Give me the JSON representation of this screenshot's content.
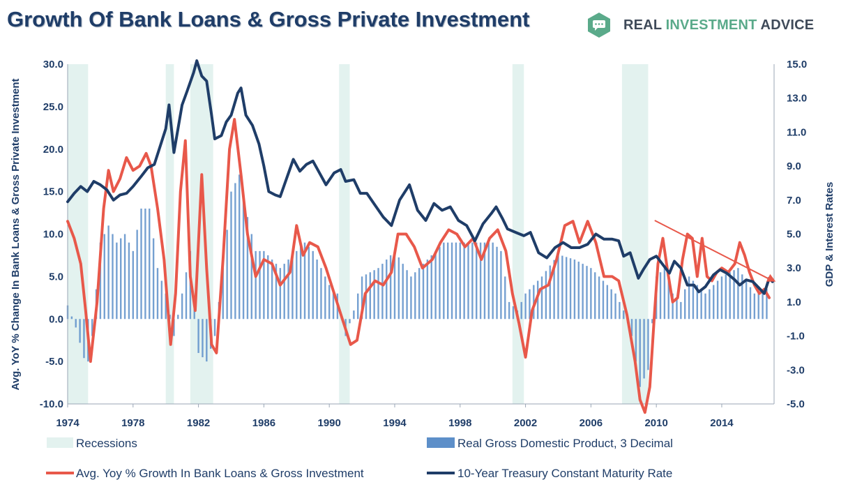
{
  "header": {
    "title": "Growth Of Bank Loans & Gross Private Investment",
    "brand_part1": "REAL ",
    "brand_part2": "INVESTMENT",
    "brand_part3": " ADVICE"
  },
  "colors": {
    "recession": "#e3f2ef",
    "gdp_bar": "#5d8fc9",
    "loans_line": "#e8584a",
    "treasury_line": "#1f3d68",
    "trend_arrow": "#e8584a",
    "axis_text": "#1f3d68",
    "brand_green": "#5aaa8a"
  },
  "chart_data": {
    "type": "bar+line",
    "title": "Growth Of Bank Loans & Gross Private Investment",
    "ylabel_left": "Avg. YoY % Change In Bank Loans & Gross Private Investment",
    "ylabel_right": "GDP & Interest Rates",
    "y_left_lim": [
      -10,
      30
    ],
    "y_right_lim": [
      -5,
      15
    ],
    "x_lim": [
      1974,
      2017.2
    ],
    "x_ticks": [
      "1974",
      "1978",
      "1982",
      "1986",
      "1990",
      "1994",
      "1998",
      "2002",
      "2006",
      "2010",
      "2014"
    ],
    "y_left_ticks": [
      "30.0",
      "25.0",
      "20.0",
      "15.0",
      "10.0",
      "5.0",
      "0.0",
      "-5.0",
      "-10.0"
    ],
    "y_right_ticks": [
      "15.0",
      "13.0",
      "11.0",
      "9.0",
      "7.0",
      "5.0",
      "3.0",
      "1.0",
      "-1.0",
      "-3.0",
      "-5.0"
    ],
    "recessions": [
      [
        1974.0,
        1975.25
      ],
      [
        1980.0,
        1980.5
      ],
      [
        1981.5,
        1982.9
      ],
      [
        1990.6,
        1991.25
      ],
      [
        2001.2,
        2001.9
      ],
      [
        2007.9,
        2009.5
      ]
    ],
    "series": [
      {
        "name": "Recessions",
        "kind": "band"
      },
      {
        "name": "Real Gross Domestic Product, 3 Decimal",
        "axis": "right",
        "kind": "bar",
        "points": [
          [
            1974.0,
            0.8
          ],
          [
            1974.5,
            -0.5
          ],
          [
            1975.0,
            -2.3
          ],
          [
            1975.25,
            -2.5
          ],
          [
            1975.5,
            -1.0
          ],
          [
            1976.0,
            4.5
          ],
          [
            1976.5,
            5.5
          ],
          [
            1977.0,
            4.5
          ],
          [
            1977.5,
            5.0
          ],
          [
            1978.0,
            4.0
          ],
          [
            1978.5,
            6.5
          ],
          [
            1979.0,
            6.5
          ],
          [
            1979.5,
            3.0
          ],
          [
            1980.0,
            1.5
          ],
          [
            1980.5,
            -1.0
          ],
          [
            1981.0,
            1.5
          ],
          [
            1981.5,
            4.0
          ],
          [
            1982.0,
            -2.0
          ],
          [
            1982.5,
            -2.5
          ],
          [
            1983.0,
            -1.0
          ],
          [
            1983.5,
            3.0
          ],
          [
            1984.0,
            7.5
          ],
          [
            1984.5,
            8.5
          ],
          [
            1985.0,
            6.0
          ],
          [
            1985.5,
            4.0
          ],
          [
            1986.0,
            4.0
          ],
          [
            1987.0,
            3.0
          ],
          [
            1988.0,
            4.0
          ],
          [
            1988.5,
            4.5
          ],
          [
            1989.0,
            4.0
          ],
          [
            1989.5,
            3.0
          ],
          [
            1990.0,
            2.0
          ],
          [
            1990.5,
            1.5
          ],
          [
            1991.0,
            -1.0
          ],
          [
            1991.5,
            0.5
          ],
          [
            1992.0,
            2.5
          ],
          [
            1993.0,
            3.0
          ],
          [
            1994.0,
            4.0
          ],
          [
            1995.0,
            2.5
          ],
          [
            1996.0,
            3.5
          ],
          [
            1997.0,
            4.5
          ],
          [
            1998.0,
            4.5
          ],
          [
            1999.0,
            4.5
          ],
          [
            2000.0,
            4.5
          ],
          [
            2000.5,
            4.0
          ],
          [
            2001.0,
            1.0
          ],
          [
            2001.5,
            0.5
          ],
          [
            2002.0,
            1.5
          ],
          [
            2002.5,
            2.0
          ],
          [
            2003.0,
            2.5
          ],
          [
            2004.0,
            3.8
          ],
          [
            2005.0,
            3.5
          ],
          [
            2006.0,
            3.0
          ],
          [
            2007.0,
            2.0
          ],
          [
            2007.5,
            1.5
          ],
          [
            2008.0,
            0.5
          ],
          [
            2008.5,
            -1.0
          ],
          [
            2009.0,
            -4.0
          ],
          [
            2009.5,
            -3.0
          ],
          [
            2010.0,
            2.5
          ],
          [
            2010.5,
            3.0
          ],
          [
            2011.0,
            1.5
          ],
          [
            2011.5,
            1.0
          ],
          [
            2012.0,
            2.5
          ],
          [
            2013.0,
            1.5
          ],
          [
            2014.0,
            2.5
          ],
          [
            2015.0,
            3.0
          ],
          [
            2016.0,
            1.5
          ],
          [
            2016.8,
            1.8
          ]
        ]
      },
      {
        "name": "Avg. Yoy % Growth In Bank Loans & Gross Investment",
        "axis": "left",
        "kind": "line",
        "points": [
          [
            1974.0,
            11.5
          ],
          [
            1974.4,
            9.5
          ],
          [
            1974.8,
            6.5
          ],
          [
            1975.1,
            1.0
          ],
          [
            1975.4,
            -5.0
          ],
          [
            1975.8,
            2.0
          ],
          [
            1976.2,
            13.0
          ],
          [
            1976.5,
            17.5
          ],
          [
            1976.8,
            15.0
          ],
          [
            1977.2,
            16.5
          ],
          [
            1977.6,
            19.0
          ],
          [
            1978.0,
            17.5
          ],
          [
            1978.4,
            18.0
          ],
          [
            1978.8,
            19.5
          ],
          [
            1979.1,
            18.0
          ],
          [
            1979.5,
            13.0
          ],
          [
            1979.9,
            7.0
          ],
          [
            1980.3,
            -3.0
          ],
          [
            1980.6,
            3.0
          ],
          [
            1980.9,
            15.0
          ],
          [
            1981.2,
            21.0
          ],
          [
            1981.5,
            5.0
          ],
          [
            1981.8,
            1.0
          ],
          [
            1982.2,
            17.0
          ],
          [
            1982.5,
            6.0
          ],
          [
            1982.8,
            -3.0
          ],
          [
            1983.1,
            -4.0
          ],
          [
            1983.5,
            7.0
          ],
          [
            1983.9,
            20.0
          ],
          [
            1984.2,
            23.5
          ],
          [
            1984.6,
            17.0
          ],
          [
            1985.0,
            10.0
          ],
          [
            1985.5,
            5.0
          ],
          [
            1986.0,
            7.0
          ],
          [
            1986.5,
            6.5
          ],
          [
            1987.0,
            4.0
          ],
          [
            1987.6,
            5.5
          ],
          [
            1988.0,
            11.0
          ],
          [
            1988.4,
            7.5
          ],
          [
            1988.8,
            9.0
          ],
          [
            1989.3,
            8.5
          ],
          [
            1989.8,
            6.0
          ],
          [
            1990.3,
            3.0
          ],
          [
            1990.8,
            0.0
          ],
          [
            1991.3,
            -3.0
          ],
          [
            1991.7,
            -2.5
          ],
          [
            1992.2,
            3.0
          ],
          [
            1992.8,
            4.5
          ],
          [
            1993.3,
            4.0
          ],
          [
            1993.8,
            5.5
          ],
          [
            1994.2,
            10.0
          ],
          [
            1994.7,
            10.0
          ],
          [
            1995.2,
            8.5
          ],
          [
            1995.7,
            6.0
          ],
          [
            1996.3,
            7.0
          ],
          [
            1996.8,
            9.0
          ],
          [
            1997.3,
            10.5
          ],
          [
            1997.8,
            10.0
          ],
          [
            1998.3,
            8.5
          ],
          [
            1998.8,
            9.5
          ],
          [
            1999.3,
            7.0
          ],
          [
            1999.8,
            9.5
          ],
          [
            2000.3,
            10.5
          ],
          [
            2000.8,
            8.0
          ],
          [
            2001.2,
            3.0
          ],
          [
            2001.6,
            -0.5
          ],
          [
            2002.0,
            -4.5
          ],
          [
            2002.4,
            1.0
          ],
          [
            2002.9,
            3.5
          ],
          [
            2003.4,
            4.0
          ],
          [
            2003.9,
            7.0
          ],
          [
            2004.4,
            11.0
          ],
          [
            2004.9,
            11.5
          ],
          [
            2005.3,
            9.0
          ],
          [
            2005.8,
            11.5
          ],
          [
            2006.3,
            9.0
          ],
          [
            2006.8,
            5.0
          ],
          [
            2007.3,
            5.0
          ],
          [
            2007.7,
            4.5
          ],
          [
            2008.2,
            0.5
          ],
          [
            2008.7,
            -5.0
          ],
          [
            2009.0,
            -9.5
          ],
          [
            2009.3,
            -11.0
          ],
          [
            2009.6,
            -8.0
          ],
          [
            2009.9,
            1.0
          ],
          [
            2010.1,
            6.5
          ],
          [
            2010.4,
            9.5
          ],
          [
            2010.7,
            5.5
          ],
          [
            2011.0,
            2.0
          ],
          [
            2011.3,
            2.5
          ],
          [
            2011.6,
            7.0
          ],
          [
            2011.9,
            10.0
          ],
          [
            2012.2,
            9.5
          ],
          [
            2012.5,
            5.0
          ],
          [
            2012.8,
            9.5
          ],
          [
            2013.1,
            5.0
          ],
          [
            2013.4,
            4.5
          ],
          [
            2013.7,
            5.5
          ],
          [
            2014.0,
            6.0
          ],
          [
            2014.4,
            5.5
          ],
          [
            2014.8,
            6.5
          ],
          [
            2015.1,
            9.0
          ],
          [
            2015.4,
            7.5
          ],
          [
            2015.7,
            5.5
          ],
          [
            2016.0,
            4.0
          ],
          [
            2016.3,
            3.0
          ],
          [
            2016.6,
            3.5
          ],
          [
            2016.9,
            2.5
          ]
        ]
      },
      {
        "name": "10-Year Treasury Constant Maturity Rate",
        "axis": "right",
        "kind": "line",
        "points": [
          [
            1974.0,
            6.9
          ],
          [
            1974.4,
            7.4
          ],
          [
            1974.8,
            7.8
          ],
          [
            1975.2,
            7.5
          ],
          [
            1975.6,
            8.1
          ],
          [
            1976.0,
            7.9
          ],
          [
            1976.4,
            7.6
          ],
          [
            1976.8,
            7.0
          ],
          [
            1977.2,
            7.3
          ],
          [
            1977.6,
            7.4
          ],
          [
            1978.0,
            7.8
          ],
          [
            1978.5,
            8.4
          ],
          [
            1978.9,
            8.9
          ],
          [
            1979.3,
            9.1
          ],
          [
            1979.7,
            10.3
          ],
          [
            1980.0,
            11.2
          ],
          [
            1980.2,
            12.6
          ],
          [
            1980.5,
            9.8
          ],
          [
            1980.8,
            11.5
          ],
          [
            1981.0,
            12.6
          ],
          [
            1981.3,
            13.4
          ],
          [
            1981.7,
            14.5
          ],
          [
            1981.9,
            15.2
          ],
          [
            1982.2,
            14.3
          ],
          [
            1982.5,
            14.0
          ],
          [
            1982.8,
            12.0
          ],
          [
            1983.0,
            10.6
          ],
          [
            1983.4,
            10.8
          ],
          [
            1983.7,
            11.6
          ],
          [
            1984.0,
            12.0
          ],
          [
            1984.4,
            13.3
          ],
          [
            1984.6,
            13.6
          ],
          [
            1984.9,
            12.0
          ],
          [
            1985.3,
            11.4
          ],
          [
            1985.7,
            10.3
          ],
          [
            1986.0,
            9.0
          ],
          [
            1986.3,
            7.5
          ],
          [
            1986.7,
            7.3
          ],
          [
            1987.0,
            7.2
          ],
          [
            1987.4,
            8.3
          ],
          [
            1987.8,
            9.4
          ],
          [
            1988.2,
            8.7
          ],
          [
            1988.6,
            9.1
          ],
          [
            1989.0,
            9.3
          ],
          [
            1989.4,
            8.6
          ],
          [
            1989.8,
            7.9
          ],
          [
            1990.3,
            8.6
          ],
          [
            1990.7,
            8.8
          ],
          [
            1991.0,
            8.1
          ],
          [
            1991.5,
            8.2
          ],
          [
            1991.9,
            7.4
          ],
          [
            1992.3,
            7.4
          ],
          [
            1992.8,
            6.7
          ],
          [
            1993.3,
            6.0
          ],
          [
            1993.8,
            5.5
          ],
          [
            1994.3,
            7.0
          ],
          [
            1994.9,
            7.9
          ],
          [
            1995.4,
            6.4
          ],
          [
            1995.9,
            5.8
          ],
          [
            1996.4,
            6.8
          ],
          [
            1996.9,
            6.4
          ],
          [
            1997.4,
            6.6
          ],
          [
            1997.9,
            5.8
          ],
          [
            1998.4,
            5.5
          ],
          [
            1998.9,
            4.6
          ],
          [
            1999.4,
            5.6
          ],
          [
            1999.9,
            6.2
          ],
          [
            2000.2,
            6.6
          ],
          [
            2000.6,
            5.9
          ],
          [
            2000.9,
            5.3
          ],
          [
            2001.4,
            5.1
          ],
          [
            2001.9,
            4.9
          ],
          [
            2002.3,
            5.1
          ],
          [
            2002.8,
            3.9
          ],
          [
            2003.3,
            3.6
          ],
          [
            2003.8,
            4.2
          ],
          [
            2004.3,
            4.5
          ],
          [
            2004.8,
            4.2
          ],
          [
            2005.3,
            4.2
          ],
          [
            2005.8,
            4.4
          ],
          [
            2006.3,
            5.0
          ],
          [
            2006.8,
            4.7
          ],
          [
            2007.3,
            4.7
          ],
          [
            2007.7,
            4.6
          ],
          [
            2008.0,
            3.7
          ],
          [
            2008.4,
            3.9
          ],
          [
            2008.9,
            2.4
          ],
          [
            2009.2,
            2.9
          ],
          [
            2009.6,
            3.5
          ],
          [
            2010.0,
            3.7
          ],
          [
            2010.4,
            3.2
          ],
          [
            2010.8,
            2.7
          ],
          [
            2011.1,
            3.4
          ],
          [
            2011.5,
            3.0
          ],
          [
            2011.9,
            2.0
          ],
          [
            2012.3,
            2.0
          ],
          [
            2012.6,
            1.6
          ],
          [
            2013.0,
            1.9
          ],
          [
            2013.5,
            2.6
          ],
          [
            2013.9,
            2.9
          ],
          [
            2014.3,
            2.7
          ],
          [
            2014.8,
            2.3
          ],
          [
            2015.1,
            2.0
          ],
          [
            2015.5,
            2.3
          ],
          [
            2015.9,
            2.2
          ],
          [
            2016.3,
            1.8
          ],
          [
            2016.6,
            1.5
          ],
          [
            2016.9,
            2.4
          ],
          [
            2017.1,
            2.2
          ]
        ]
      }
    ],
    "trend_arrow": {
      "from": [
        2009.9,
        5.8
      ],
      "to": [
        2017.3,
        2.2
      ],
      "axis": "right"
    }
  }
}
